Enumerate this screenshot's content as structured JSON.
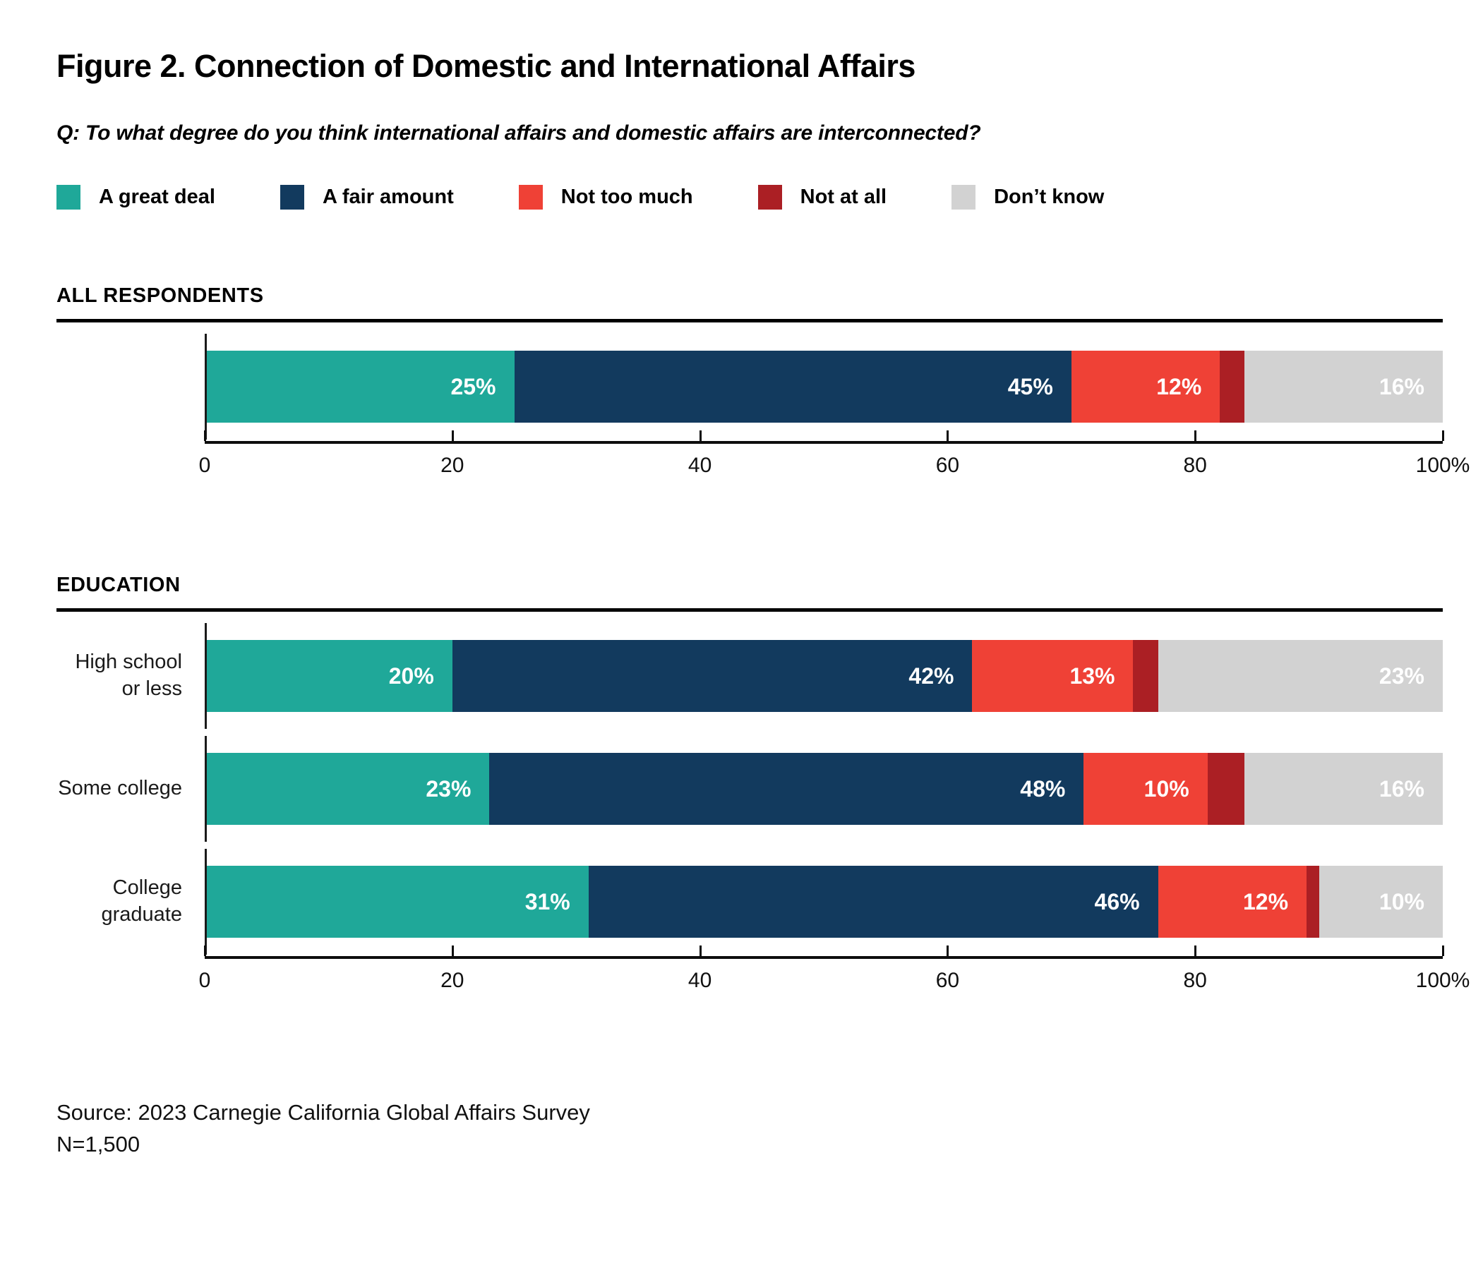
{
  "page": {
    "title": "Figure 2. Connection of Domestic and International Affairs",
    "question": "Q: To what degree do you think international affairs and domestic affairs are interconnected?",
    "source_line1": "Source: 2023 Carnegie California Global Affairs Survey",
    "source_line2": "N=1,500"
  },
  "chart_data": {
    "type": "bar",
    "stacked": true,
    "orientation": "horizontal",
    "xlim": [
      0,
      100
    ],
    "x_tick_values": [
      0,
      20,
      40,
      60,
      80,
      100
    ],
    "x_tick_labels": [
      "0",
      "20",
      "40",
      "60",
      "80",
      "100%"
    ],
    "series": [
      {
        "name": "A great deal",
        "color": "#1FA899"
      },
      {
        "name": "A fair amount",
        "color": "#123A5E"
      },
      {
        "name": "Not too much",
        "color": "#EF4136"
      },
      {
        "name": "Not at all",
        "color": "#AB1F24"
      },
      {
        "name": "Don’t know",
        "color": "#D2D2D2"
      }
    ],
    "groups": [
      {
        "section": "ALL RESPONDENTS",
        "rows": [
          {
            "label": "",
            "label_lines": [],
            "values": [
              25,
              45,
              12,
              2,
              16
            ],
            "value_labels": [
              "25%",
              "45%",
              "12%",
              "",
              "16%"
            ]
          }
        ]
      },
      {
        "section": "EDUCATION",
        "rows": [
          {
            "label": "High school or less",
            "label_lines": [
              "High school",
              "or less"
            ],
            "values": [
              20,
              42,
              13,
              2,
              23
            ],
            "value_labels": [
              "20%",
              "42%",
              "13%",
              "",
              "23%"
            ]
          },
          {
            "label": "Some college",
            "label_lines": [
              "Some college"
            ],
            "values": [
              23,
              48,
              10,
              3,
              16
            ],
            "value_labels": [
              "23%",
              "48%",
              "10%",
              "",
              "16%"
            ]
          },
          {
            "label": "College graduate",
            "label_lines": [
              "College",
              "graduate"
            ],
            "values": [
              31,
              46,
              12,
              1,
              10
            ],
            "value_labels": [
              "31%",
              "46%",
              "12%",
              "",
              "10%"
            ]
          }
        ]
      }
    ]
  }
}
